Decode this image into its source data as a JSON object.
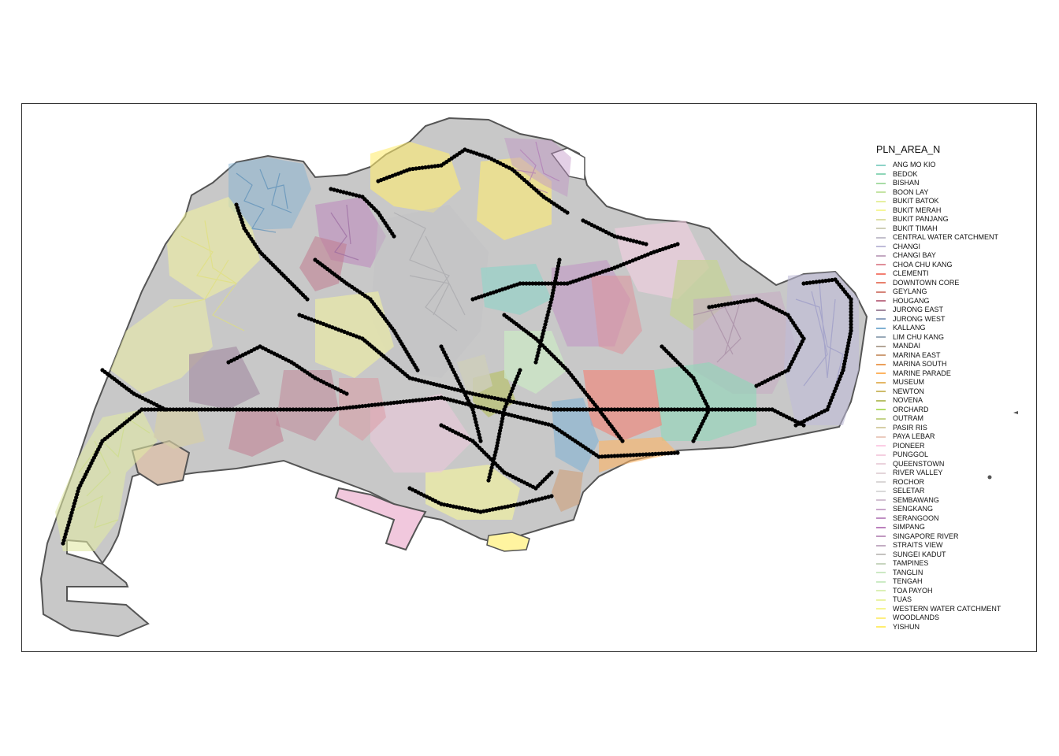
{
  "legend": {
    "title": "PLN_AREA_N",
    "items": [
      {
        "label": "ANG MO KIO",
        "color": "#8dd3c7"
      },
      {
        "label": "BEDOK",
        "color": "#8fd6b8"
      },
      {
        "label": "BISHAN",
        "color": "#a8dca6"
      },
      {
        "label": "BOON LAY",
        "color": "#c5e4a4"
      },
      {
        "label": "BUKIT BATOK",
        "color": "#e6f0a0"
      },
      {
        "label": "BUKIT MERAH",
        "color": "#f6f79a"
      },
      {
        "label": "BUKIT PANJANG",
        "color": "#dfe0a6"
      },
      {
        "label": "BUKIT TIMAH",
        "color": "#cfcfb8"
      },
      {
        "label": "CENTRAL WATER CATCHMENT",
        "color": "#c3c0cc"
      },
      {
        "label": "CHANGI",
        "color": "#bfbbd9"
      },
      {
        "label": "CHANGI BAY",
        "color": "#c4a9c2"
      },
      {
        "label": "CHOA CHU KANG",
        "color": "#e08e99"
      },
      {
        "label": "CLEMENTI",
        "color": "#f47f72"
      },
      {
        "label": "DOWNTOWN CORE",
        "color": "#e8806d"
      },
      {
        "label": "GEYLANG",
        "color": "#d58479"
      },
      {
        "label": "HOUGANG",
        "color": "#c0758b"
      },
      {
        "label": "JURONG EAST",
        "color": "#a1889e"
      },
      {
        "label": "JURONG WEST",
        "color": "#8ea2c0"
      },
      {
        "label": "KALLANG",
        "color": "#80b1d3"
      },
      {
        "label": "LIM CHU KANG",
        "color": "#9aaab9"
      },
      {
        "label": "MANDAI",
        "color": "#b3a597"
      },
      {
        "label": "MARINA EAST",
        "color": "#ce9e78"
      },
      {
        "label": "MARINA SOUTH",
        "color": "#eb9f5a"
      },
      {
        "label": "MARINE PARADE",
        "color": "#fdb462"
      },
      {
        "label": "MUSEUM",
        "color": "#e4b766"
      },
      {
        "label": "NEWTON",
        "color": "#cebc6b"
      },
      {
        "label": "NOVENA",
        "color": "#b8c16a"
      },
      {
        "label": "ORCHARD",
        "color": "#b3de69"
      },
      {
        "label": "OUTRAM",
        "color": "#c5d48a"
      },
      {
        "label": "PASIR RIS",
        "color": "#d7cfa6"
      },
      {
        "label": "PAYA LEBAR",
        "color": "#ebcbbf"
      },
      {
        "label": "PIONEER",
        "color": "#fccde5"
      },
      {
        "label": "PUNGGOL",
        "color": "#f4cfe0"
      },
      {
        "label": "QUEENSTOWN",
        "color": "#ebd2dc"
      },
      {
        "label": "RIVER VALLEY",
        "color": "#e3d5d9"
      },
      {
        "label": "ROCHOR",
        "color": "#dad7d7"
      },
      {
        "label": "SELETAR",
        "color": "#d9d9d9"
      },
      {
        "label": "SEMBAWANG",
        "color": "#d3c1d3"
      },
      {
        "label": "SENGKANG",
        "color": "#c9a7cb"
      },
      {
        "label": "SERANGOON",
        "color": "#c08fc3"
      },
      {
        "label": "SIMPANG",
        "color": "#bc80bd"
      },
      {
        "label": "SINGAPORE RIVER",
        "color": "#c097c0"
      },
      {
        "label": "STRAITS VIEW",
        "color": "#c3adc3"
      },
      {
        "label": "SUNGEI KADUT",
        "color": "#c4c2bf"
      },
      {
        "label": "TAMPINES",
        "color": "#c7d5bf"
      },
      {
        "label": "TANGLIN",
        "color": "#cce9c4"
      },
      {
        "label": "TENGAH",
        "color": "#ccebc5"
      },
      {
        "label": "TOA PAYOH",
        "color": "#dbf0b5"
      },
      {
        "label": "TUAS",
        "color": "#eaf3a4"
      },
      {
        "label": "WESTERN WATER CATCHMENT",
        "color": "#f6f593"
      },
      {
        "label": "WOODLANDS",
        "color": "#fdee80"
      },
      {
        "label": "YISHUN",
        "color": "#ffed6f"
      }
    ]
  },
  "map": {
    "land_fill": "#c8c8c8",
    "coast_color": "#555555",
    "point_color": "#000000"
  }
}
